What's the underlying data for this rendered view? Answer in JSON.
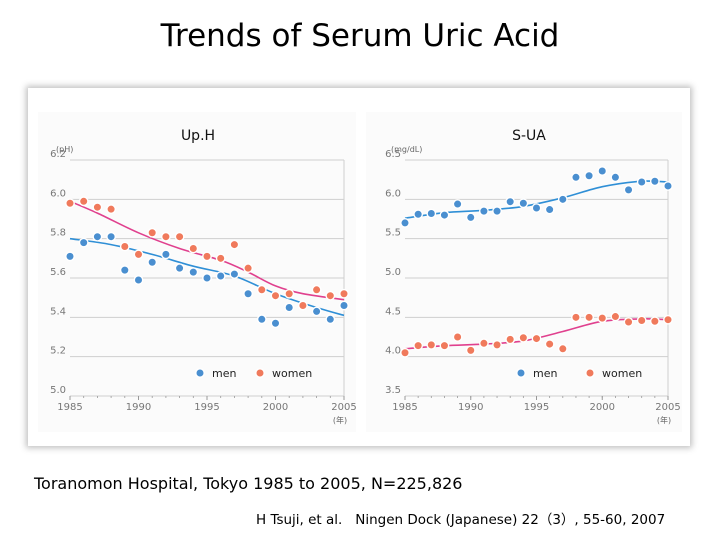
{
  "title": "Trends of Serum Uric Acid",
  "source": "Toranomon Hospital, Tokyo 1985 to 2005, N=225,826",
  "citation": {
    "author": "H Tsuji, et al.",
    "journal": "Ningen Dock (Japanese) 22（3）, 55-60, 2007"
  },
  "colors": {
    "men": "#4a8fd0",
    "women": "#f07a5c",
    "men_curve": "#2f8fd6",
    "women_curve": "#e0408e",
    "grid": "#cfcfcf",
    "axis": "#999999"
  },
  "chart_data": [
    {
      "type": "scatter",
      "title": "Up.H",
      "ylabel": "(pH)",
      "xlabel": "(年)",
      "xlim": [
        1985,
        2005
      ],
      "ylim": [
        5.0,
        6.2
      ],
      "x_ticks": [
        1985,
        1990,
        1995,
        2000,
        2005
      ],
      "y_ticks": [
        5.0,
        5.2,
        5.4,
        5.6,
        5.8,
        6.0,
        6.2
      ],
      "y_tick_labels": [
        "5.0",
        "5.2",
        "5.4",
        "5.6",
        "5.8",
        "6.0",
        "6.2"
      ],
      "legend": [
        "men",
        "women"
      ],
      "series": [
        {
          "name": "men",
          "points": [
            [
              1985,
              5.71
            ],
            [
              1986,
              5.78
            ],
            [
              1987,
              5.81
            ],
            [
              1988,
              5.81
            ],
            [
              1989,
              5.64
            ],
            [
              1990,
              5.59
            ],
            [
              1991,
              5.68
            ],
            [
              1992,
              5.72
            ],
            [
              1993,
              5.65
            ],
            [
              1994,
              5.63
            ],
            [
              1995,
              5.6
            ],
            [
              1996,
              5.61
            ],
            [
              1997,
              5.62
            ],
            [
              1998,
              5.52
            ],
            [
              1999,
              5.39
            ],
            [
              2000,
              5.37
            ],
            [
              2001,
              5.45
            ],
            [
              2002,
              5.46
            ],
            [
              2003,
              5.43
            ],
            [
              2004,
              5.39
            ],
            [
              2005,
              5.46
            ]
          ],
          "trend": [
            [
              1985,
              5.8
            ],
            [
              1988,
              5.77
            ],
            [
              1991,
              5.72
            ],
            [
              1994,
              5.66
            ],
            [
              1997,
              5.61
            ],
            [
              2000,
              5.52
            ],
            [
              2003,
              5.45
            ],
            [
              2005,
              5.41
            ]
          ]
        },
        {
          "name": "women",
          "points": [
            [
              1985,
              5.98
            ],
            [
              1986,
              5.99
            ],
            [
              1987,
              5.96
            ],
            [
              1988,
              5.95
            ],
            [
              1989,
              5.76
            ],
            [
              1990,
              5.72
            ],
            [
              1991,
              5.83
            ],
            [
              1992,
              5.81
            ],
            [
              1993,
              5.81
            ],
            [
              1994,
              5.75
            ],
            [
              1995,
              5.71
            ],
            [
              1996,
              5.7
            ],
            [
              1997,
              5.77
            ],
            [
              1998,
              5.65
            ],
            [
              1999,
              5.54
            ],
            [
              2000,
              5.51
            ],
            [
              2001,
              5.52
            ],
            [
              2002,
              5.46
            ],
            [
              2003,
              5.54
            ],
            [
              2004,
              5.51
            ],
            [
              2005,
              5.52
            ]
          ],
          "trend": [
            [
              1985,
              5.99
            ],
            [
              1987,
              5.93
            ],
            [
              1990,
              5.83
            ],
            [
              1993,
              5.75
            ],
            [
              1996,
              5.69
            ],
            [
              1998,
              5.63
            ],
            [
              2000,
              5.56
            ],
            [
              2002,
              5.52
            ],
            [
              2005,
              5.49
            ]
          ]
        }
      ]
    },
    {
      "type": "scatter",
      "title": "S-UA",
      "ylabel": "(mg/dL)",
      "xlabel": "(年)",
      "xlim": [
        1985,
        2005
      ],
      "ylim": [
        3.5,
        6.5
      ],
      "x_ticks": [
        1985,
        1990,
        1995,
        2000,
        2005
      ],
      "y_ticks": [
        3.5,
        4.0,
        4.5,
        5.0,
        5.5,
        6.0,
        6.5
      ],
      "y_tick_labels": [
        "3.5",
        "4.0",
        "4.5",
        "5.0",
        "5.5",
        "6.0",
        "6.5"
      ],
      "legend": [
        "men",
        "women"
      ],
      "series": [
        {
          "name": "men",
          "points": [
            [
              1985,
              5.7
            ],
            [
              1986,
              5.81
            ],
            [
              1987,
              5.82
            ],
            [
              1988,
              5.8
            ],
            [
              1989,
              5.94
            ],
            [
              1990,
              5.77
            ],
            [
              1991,
              5.85
            ],
            [
              1992,
              5.85
            ],
            [
              1993,
              5.97
            ],
            [
              1994,
              5.95
            ],
            [
              1995,
              5.89
            ],
            [
              1996,
              5.87
            ],
            [
              1997,
              6.0
            ],
            [
              1998,
              6.28
            ],
            [
              1999,
              6.3
            ],
            [
              2000,
              6.36
            ],
            [
              2001,
              6.28
            ],
            [
              2002,
              6.12
            ],
            [
              2003,
              6.22
            ],
            [
              2004,
              6.23
            ],
            [
              2005,
              6.17
            ]
          ],
          "trend": [
            [
              1985,
              5.76
            ],
            [
              1988,
              5.83
            ],
            [
              1991,
              5.86
            ],
            [
              1994,
              5.91
            ],
            [
              1997,
              6.02
            ],
            [
              2000,
              6.16
            ],
            [
              2003,
              6.23
            ],
            [
              2005,
              6.22
            ]
          ]
        },
        {
          "name": "women",
          "points": [
            [
              1985,
              4.05
            ],
            [
              1986,
              4.14
            ],
            [
              1987,
              4.15
            ],
            [
              1988,
              4.14
            ],
            [
              1989,
              4.25
            ],
            [
              1990,
              4.08
            ],
            [
              1991,
              4.17
            ],
            [
              1992,
              4.15
            ],
            [
              1993,
              4.22
            ],
            [
              1994,
              4.24
            ],
            [
              1995,
              4.23
            ],
            [
              1996,
              4.16
            ],
            [
              1997,
              4.1
            ],
            [
              1998,
              4.5
            ],
            [
              1999,
              4.5
            ],
            [
              2000,
              4.49
            ],
            [
              2001,
              4.51
            ],
            [
              2002,
              4.44
            ],
            [
              2003,
              4.46
            ],
            [
              2004,
              4.45
            ],
            [
              2005,
              4.47
            ]
          ],
          "trend": [
            [
              1985,
              4.1
            ],
            [
              1988,
              4.14
            ],
            [
              1991,
              4.16
            ],
            [
              1994,
              4.2
            ],
            [
              1997,
              4.32
            ],
            [
              2000,
              4.45
            ],
            [
              2003,
              4.48
            ],
            [
              2005,
              4.47
            ]
          ]
        }
      ]
    }
  ]
}
